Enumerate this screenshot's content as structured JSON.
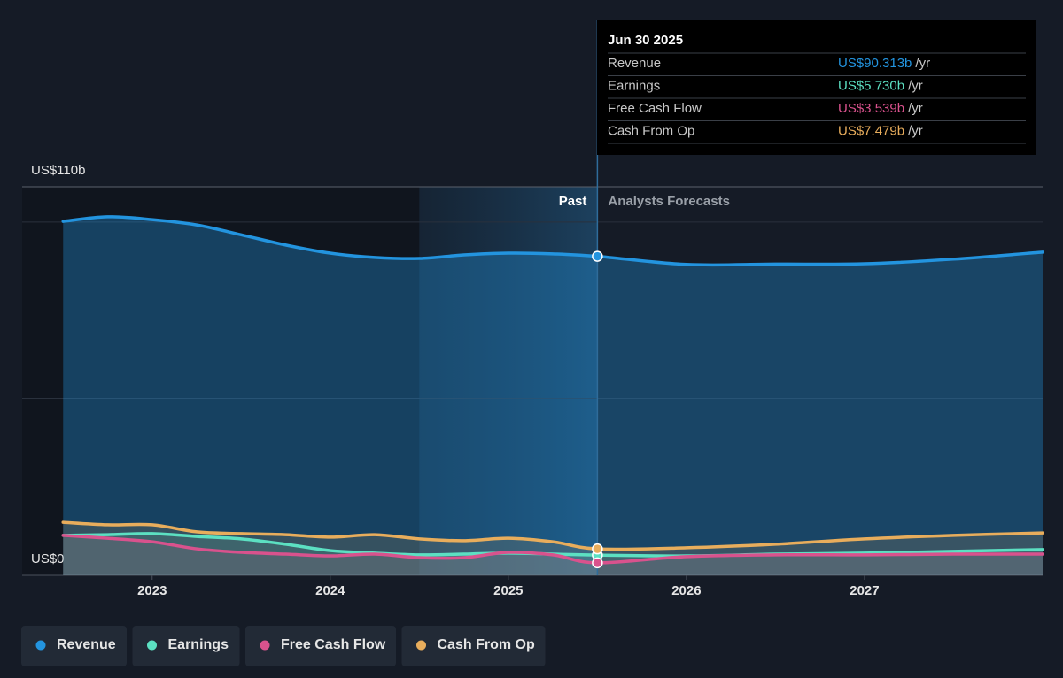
{
  "chart_data": {
    "type": "line",
    "x": [
      2022.5,
      2022.75,
      2023,
      2023.25,
      2023.5,
      2023.75,
      2024,
      2024.25,
      2024.5,
      2024.75,
      2025,
      2025.25,
      2025.5,
      2026,
      2026.5,
      2027,
      2027.5,
      2028
    ],
    "series": [
      {
        "name": "Revenue",
        "color": "#2394df",
        "values": [
          100.2,
          101.5,
          100.7,
          99.2,
          96.4,
          93.5,
          91.2,
          90,
          89.7,
          90.7,
          91.2,
          91,
          90.313,
          88,
          88.1,
          88.2,
          89.5,
          91.5
        ]
      },
      {
        "name": "Earnings",
        "color": "#5ce0c2",
        "values": [
          11.3,
          11.5,
          11.8,
          11,
          10.3,
          8.8,
          7,
          6.3,
          5.8,
          6,
          6.3,
          6,
          5.73,
          5.5,
          6,
          6.3,
          6.8,
          7.3
        ]
      },
      {
        "name": "Free Cash Flow",
        "color": "#d9528d",
        "values": [
          11.3,
          10.5,
          9.5,
          7.5,
          6.5,
          6,
          5.5,
          6,
          5,
          5,
          6.5,
          5.8,
          3.539,
          5.3,
          5.8,
          5.8,
          6,
          6
        ]
      },
      {
        "name": "Cash From Op",
        "color": "#e8ad5c",
        "values": [
          15,
          14.3,
          14.3,
          12.3,
          11.8,
          11.5,
          10.8,
          11.5,
          10.3,
          9.8,
          10.5,
          9.5,
          7.479,
          7.8,
          8.8,
          10.3,
          11.3,
          12
        ]
      }
    ],
    "xlim": [
      2022.27,
      2028
    ],
    "xticks": [
      2023,
      2024,
      2025,
      2026,
      2027
    ],
    "ylim": [
      0,
      110
    ],
    "yticks": [
      {
        "value": 0,
        "label": "US$0"
      },
      {
        "value": 110,
        "label": "US$110b"
      }
    ],
    "ygrid": [
      50,
      100
    ],
    "divider": 2025.5,
    "highlight_start": 2024.5,
    "past_label": "Past",
    "forecast_label": "Analysts Forecasts",
    "tooltip": {
      "date": "Jun 30 2025",
      "rows": [
        {
          "label": "Revenue",
          "value": "US$90.313b",
          "unit": "/yr"
        },
        {
          "label": "Earnings",
          "value": "US$5.730b",
          "unit": "/yr"
        },
        {
          "label": "Free Cash Flow",
          "value": "US$3.539b",
          "unit": "/yr"
        },
        {
          "label": "Cash From Op",
          "value": "US$7.479b",
          "unit": "/yr"
        }
      ]
    }
  }
}
